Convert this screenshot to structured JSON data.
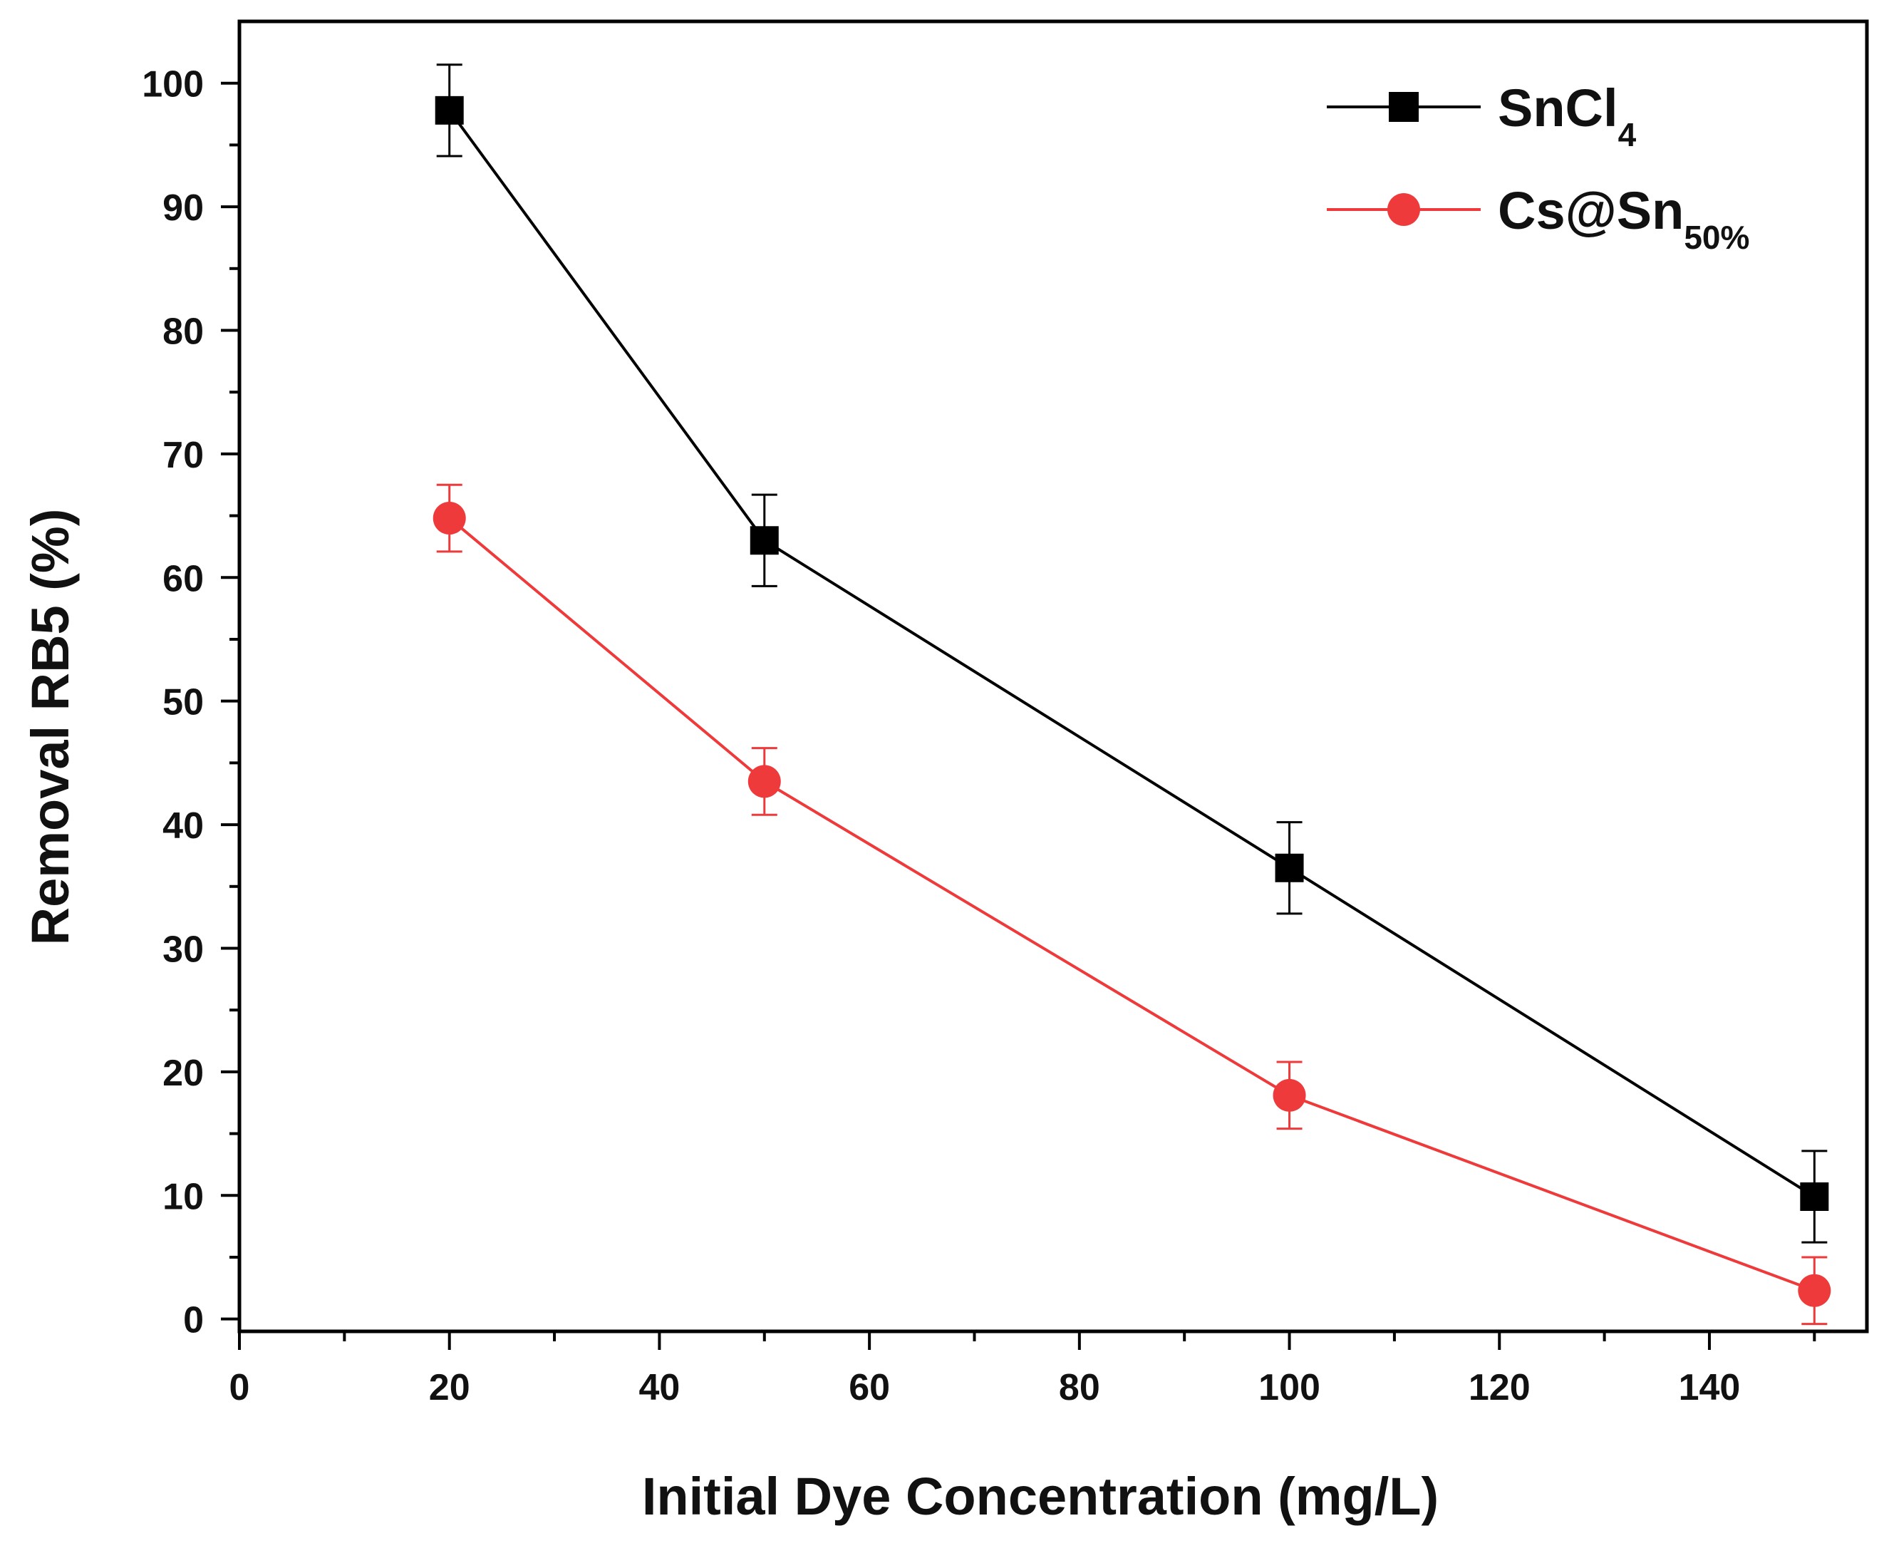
{
  "chart_data": {
    "type": "line",
    "title": "",
    "xlabel": "Initial Dye Concentration (mg/L)",
    "ylabel": "Removal RB5 (%)",
    "xlim": [
      0,
      155
    ],
    "ylim": [
      -1,
      105
    ],
    "xticks": [
      0,
      20,
      40,
      60,
      80,
      100,
      120,
      140
    ],
    "yticks": [
      0,
      10,
      20,
      30,
      40,
      50,
      60,
      70,
      80,
      90,
      100
    ],
    "legend_position": "top-right",
    "grid": false,
    "x": [
      20,
      50,
      100,
      150
    ],
    "series": [
      {
        "name": "SnCl4",
        "legend_main": "SnCl",
        "legend_sub": "4",
        "color": "#000000",
        "marker": "square",
        "values": [
          97.8,
          63.0,
          36.5,
          9.9
        ],
        "errors": [
          3.7,
          3.7,
          3.7,
          3.7
        ]
      },
      {
        "name": "Cs@Sn50%",
        "legend_main": "Cs@Sn",
        "legend_sub": "50%",
        "color": "#ee3a3a",
        "marker": "circle",
        "values": [
          64.8,
          43.5,
          18.1,
          2.3
        ],
        "errors": [
          2.7,
          2.7,
          2.7,
          2.7
        ]
      }
    ]
  }
}
